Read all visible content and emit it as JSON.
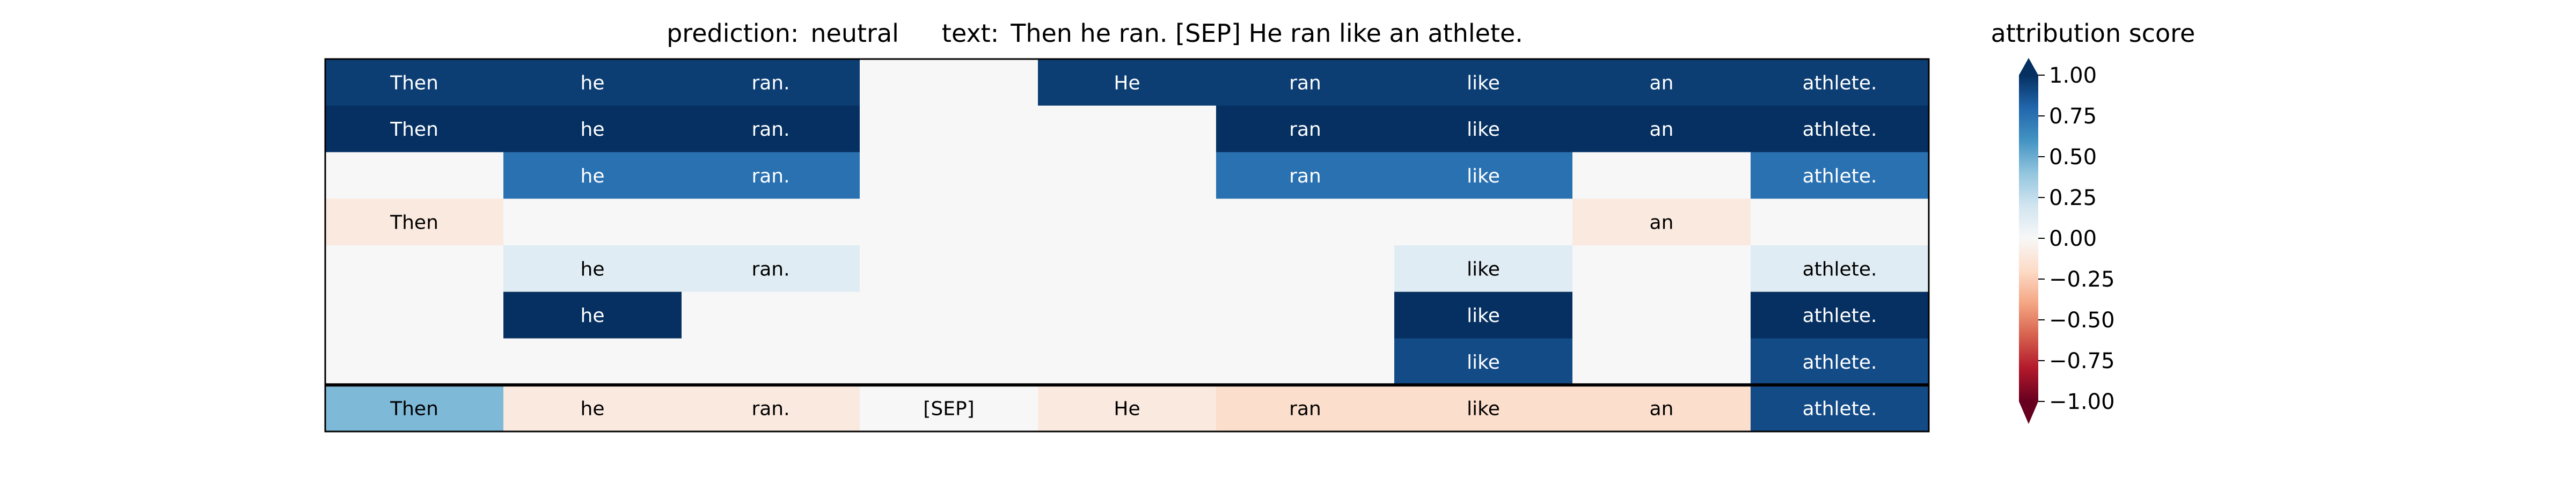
{
  "header": {
    "prediction_label": "prediction:",
    "prediction_value": "neutral",
    "text_label": "text:",
    "text_value": "Then he ran. [SEP] He ran like an athlete."
  },
  "colorbar": {
    "title": "attribution score",
    "ticks": [
      "1.00",
      "0.75",
      "0.50",
      "0.25",
      "0.00",
      "−0.25",
      "−0.50",
      "−0.75",
      "−1.00"
    ],
    "tick_values": [
      1.0,
      0.75,
      0.5,
      0.25,
      0.0,
      -0.25,
      -0.5,
      -0.75,
      -1.0
    ],
    "range": [
      -1,
      1
    ],
    "extend": "both"
  },
  "chart_data": {
    "type": "heatmap",
    "title": "prediction:  neutral     text:  Then he ran. [SEP] He ran like an athlete.",
    "columns": [
      "Then",
      "he",
      "ran.",
      "[SEP]",
      "He",
      "ran",
      "like",
      "an",
      "athlete."
    ],
    "vmin": -1,
    "vmax": 1,
    "colormap": "RdBu",
    "rows": [
      {
        "values": [
          0.95,
          0.95,
          0.95,
          0.0,
          0.95,
          0.95,
          0.95,
          0.95,
          0.95
        ],
        "labels": [
          "Then",
          "he",
          "ran.",
          "",
          "He",
          "ran",
          "like",
          "an",
          "athlete."
        ]
      },
      {
        "values": [
          1.0,
          1.0,
          1.0,
          0.0,
          0.0,
          1.0,
          1.0,
          1.0,
          1.0
        ],
        "labels": [
          "Then",
          "he",
          "ran.",
          "",
          "",
          "ran",
          "like",
          "an",
          "athlete."
        ]
      },
      {
        "values": [
          0.0,
          0.75,
          0.75,
          0.0,
          0.0,
          0.75,
          0.75,
          0.0,
          0.75
        ],
        "labels": [
          "",
          "he",
          "ran.",
          "",
          "",
          "ran",
          "like",
          "",
          "athlete."
        ]
      },
      {
        "values": [
          -0.1,
          0.0,
          0.0,
          0.0,
          0.0,
          0.0,
          0.0,
          -0.1,
          0.0
        ],
        "labels": [
          "Then",
          "",
          "",
          "",
          "",
          "",
          "",
          "an",
          ""
        ]
      },
      {
        "values": [
          0.0,
          0.12,
          0.12,
          0.0,
          0.0,
          0.0,
          0.12,
          0.0,
          0.12
        ],
        "labels": [
          "",
          "he",
          "ran.",
          "",
          "",
          "",
          "like",
          "",
          "athlete."
        ]
      },
      {
        "values": [
          0.0,
          1.0,
          0.0,
          0.0,
          0.0,
          0.0,
          1.0,
          0.0,
          1.0
        ],
        "labels": [
          "",
          "he",
          "",
          "",
          "",
          "",
          "like",
          "",
          "athlete."
        ]
      },
      {
        "values": [
          0.0,
          0.0,
          0.0,
          0.0,
          0.0,
          0.0,
          0.9,
          0.0,
          0.9
        ],
        "labels": [
          "",
          "",
          "",
          "",
          "",
          "",
          "like",
          "",
          "athlete."
        ]
      },
      {
        "values": [
          0.45,
          -0.1,
          -0.1,
          0.0,
          -0.1,
          -0.18,
          -0.18,
          -0.18,
          0.9
        ],
        "labels": [
          "Then",
          "he",
          "ran.",
          "[SEP]",
          "He",
          "ran",
          "like",
          "an",
          "athlete."
        ]
      }
    ]
  }
}
